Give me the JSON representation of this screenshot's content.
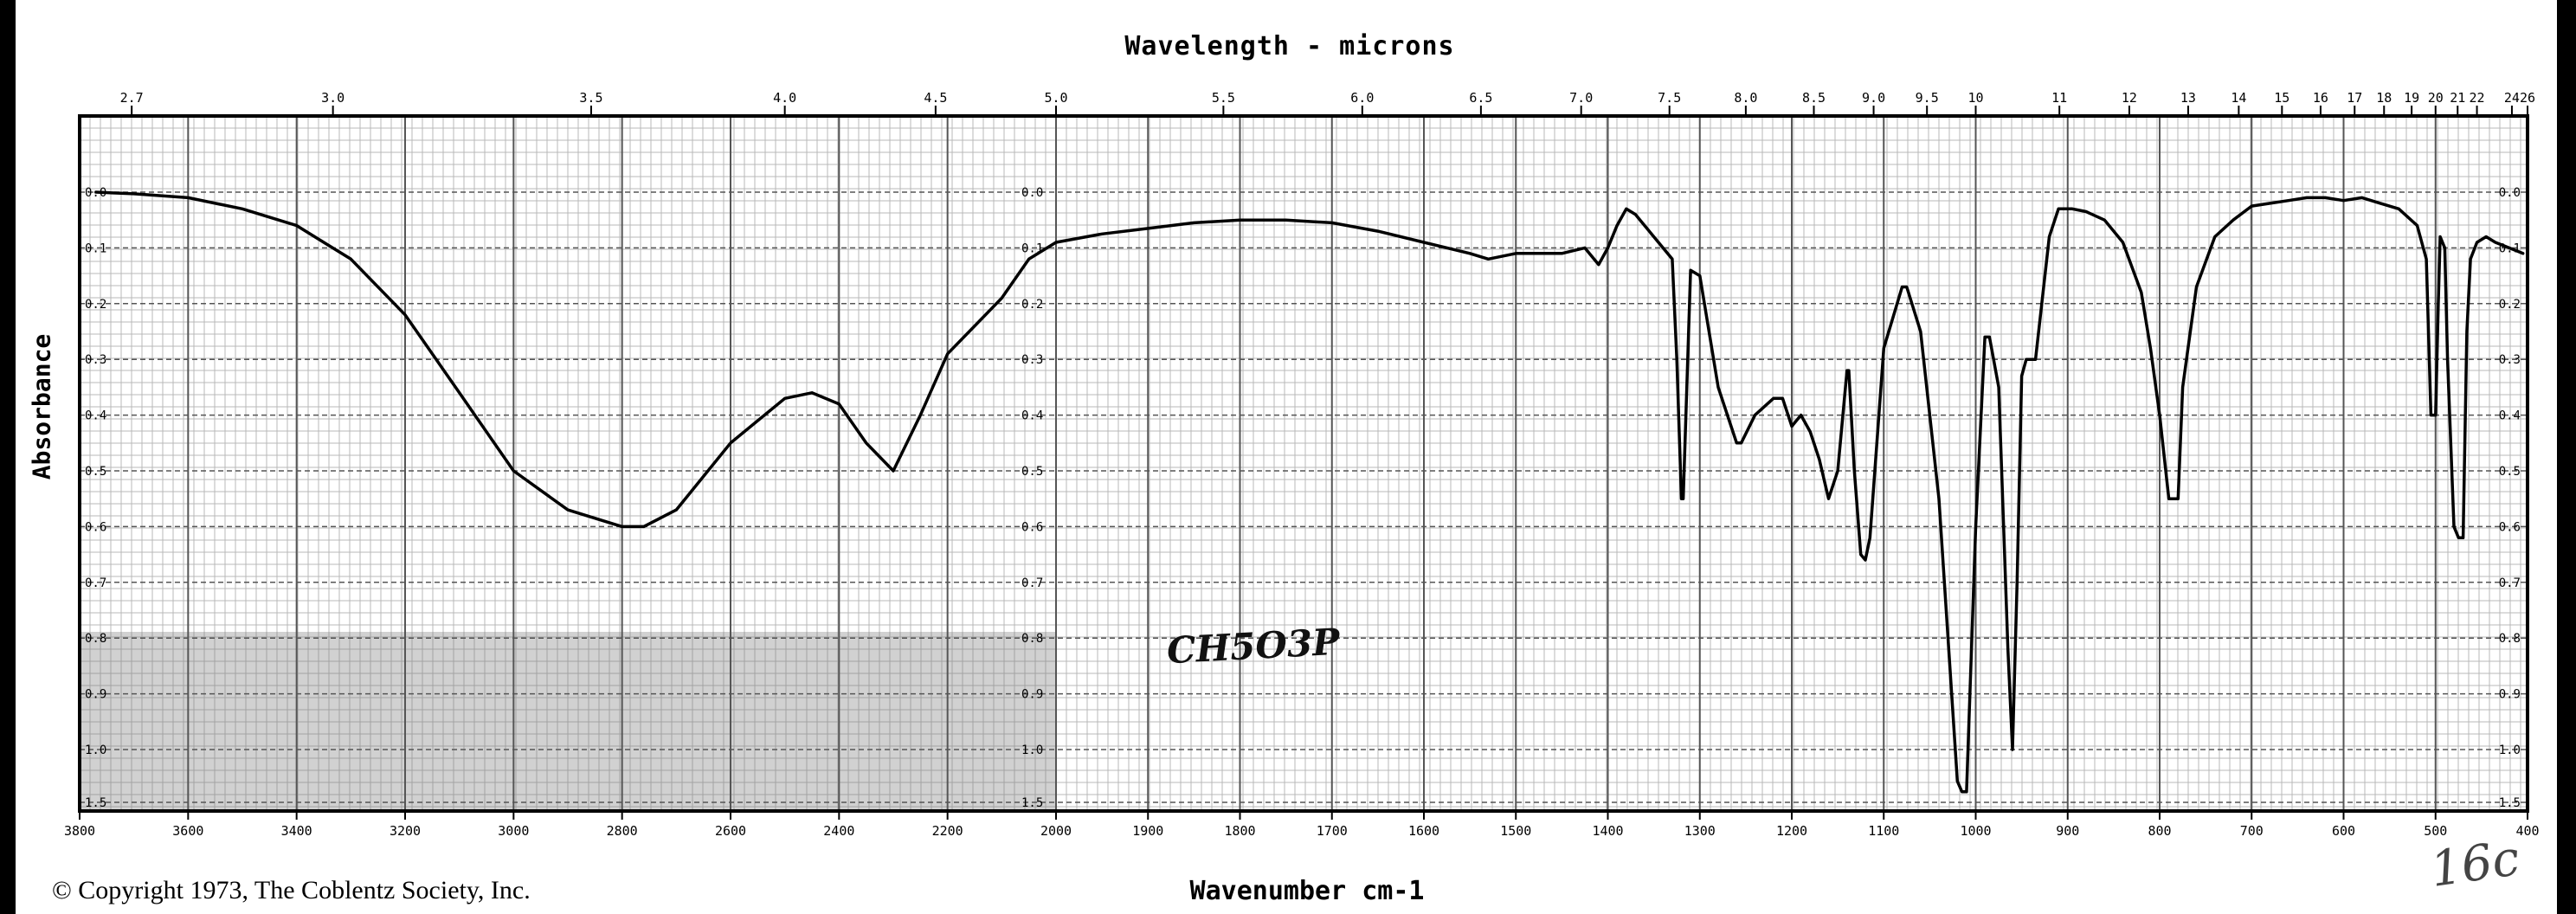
{
  "chart_data": {
    "type": "line",
    "title": "Wavelength - microns",
    "xlabel": "Wavenumber cm-1",
    "ylabel": "Absorbance",
    "top_axis_ticks": [
      "2.7",
      "3.0",
      "3.5",
      "4.0",
      "4.5",
      "5.0",
      "5.5",
      "6.0",
      "6.5",
      "7.0",
      "7.5",
      "8.0",
      "8.5",
      "9.0",
      "9.5",
      "10",
      "11",
      "12",
      "13",
      "14",
      "15",
      "16",
      "17",
      "18",
      "19",
      "20",
      "21",
      "22",
      "24",
      "26"
    ],
    "x_ticks": [
      3800,
      3600,
      3400,
      3200,
      3000,
      2800,
      2600,
      2400,
      2200,
      2000,
      1900,
      1800,
      1700,
      1600,
      1500,
      1400,
      1300,
      1200,
      1100,
      1000,
      900,
      800,
      700,
      600,
      500,
      400
    ],
    "y_ticks": [
      "0.0",
      "0.1",
      "0.2",
      "0.3",
      "0.4",
      "0.5",
      "0.6",
      "0.7",
      "0.8",
      "0.9",
      "1.0",
      "1.5"
    ],
    "xlim": [
      3800,
      400
    ],
    "ylim": [
      0.0,
      1.5
    ],
    "grid": true,
    "series": [
      {
        "x": [
          3770,
          3700,
          3600,
          3500,
          3400,
          3300,
          3200,
          3100,
          3000,
          2900,
          2800,
          2760,
          2700,
          2600,
          2500,
          2450,
          2400,
          2350,
          2300,
          2250,
          2200,
          2100,
          2050,
          2000,
          1950,
          1900,
          1850,
          1800,
          1750,
          1700,
          1650,
          1600,
          1550,
          1530,
          1500,
          1450,
          1425,
          1410,
          1400,
          1390,
          1380,
          1370,
          1350,
          1330,
          1325,
          1320,
          1318,
          1310,
          1300,
          1280,
          1260,
          1255,
          1240,
          1220,
          1210,
          1200,
          1190,
          1180,
          1170,
          1160,
          1150,
          1140,
          1138,
          1132,
          1125,
          1120,
          1115,
          1100,
          1080,
          1075,
          1060,
          1040,
          1020,
          1015,
          1010,
          1000,
          990,
          985,
          975,
          965,
          960,
          955,
          950,
          945,
          935,
          920,
          910,
          895,
          880,
          860,
          840,
          820,
          810,
          800,
          790,
          780,
          775,
          760,
          740,
          720,
          700,
          680,
          660,
          640,
          620,
          600,
          580,
          560,
          540,
          520,
          510,
          505,
          500,
          497,
          495,
          490,
          487,
          480,
          475,
          470,
          466,
          462,
          455,
          445,
          435,
          420,
          405
        ],
        "y": [
          0.0,
          0.003,
          0.01,
          0.03,
          0.06,
          0.12,
          0.22,
          0.36,
          0.5,
          0.57,
          0.6,
          0.6,
          0.57,
          0.45,
          0.37,
          0.36,
          0.38,
          0.45,
          0.5,
          0.4,
          0.29,
          0.19,
          0.12,
          0.09,
          0.075,
          0.065,
          0.055,
          0.05,
          0.05,
          0.055,
          0.07,
          0.09,
          0.11,
          0.12,
          0.11,
          0.11,
          0.1,
          0.13,
          0.1,
          0.06,
          0.03,
          0.04,
          0.08,
          0.12,
          0.3,
          0.55,
          0.55,
          0.14,
          0.15,
          0.35,
          0.45,
          0.45,
          0.4,
          0.37,
          0.37,
          0.42,
          0.4,
          0.43,
          0.48,
          0.55,
          0.5,
          0.32,
          0.32,
          0.5,
          0.65,
          0.66,
          0.62,
          0.28,
          0.17,
          0.17,
          0.25,
          0.55,
          1.3,
          1.4,
          1.4,
          0.6,
          0.26,
          0.26,
          0.35,
          0.82,
          1.0,
          0.7,
          0.33,
          0.3,
          0.3,
          0.08,
          0.03,
          0.03,
          0.035,
          0.05,
          0.09,
          0.18,
          0.28,
          0.4,
          0.55,
          0.55,
          0.35,
          0.17,
          0.08,
          0.05,
          0.025,
          0.02,
          0.015,
          0.01,
          0.01,
          0.015,
          0.01,
          0.02,
          0.03,
          0.06,
          0.12,
          0.4,
          0.4,
          0.2,
          0.08,
          0.1,
          0.3,
          0.6,
          0.62,
          0.62,
          0.25,
          0.12,
          0.09,
          0.08,
          0.09,
          0.1,
          0.11
        ]
      }
    ],
    "annotations": {
      "formula_note": "CH5O3P"
    }
  },
  "footer": {
    "copyright": "© Copyright 1973, The Coblentz Society, Inc.",
    "page_mark": "16c"
  },
  "colors": {
    "background": "#ffffff",
    "ink": "#000000",
    "grid_major": "#555555",
    "grid_minor": "#b8b8b8"
  }
}
